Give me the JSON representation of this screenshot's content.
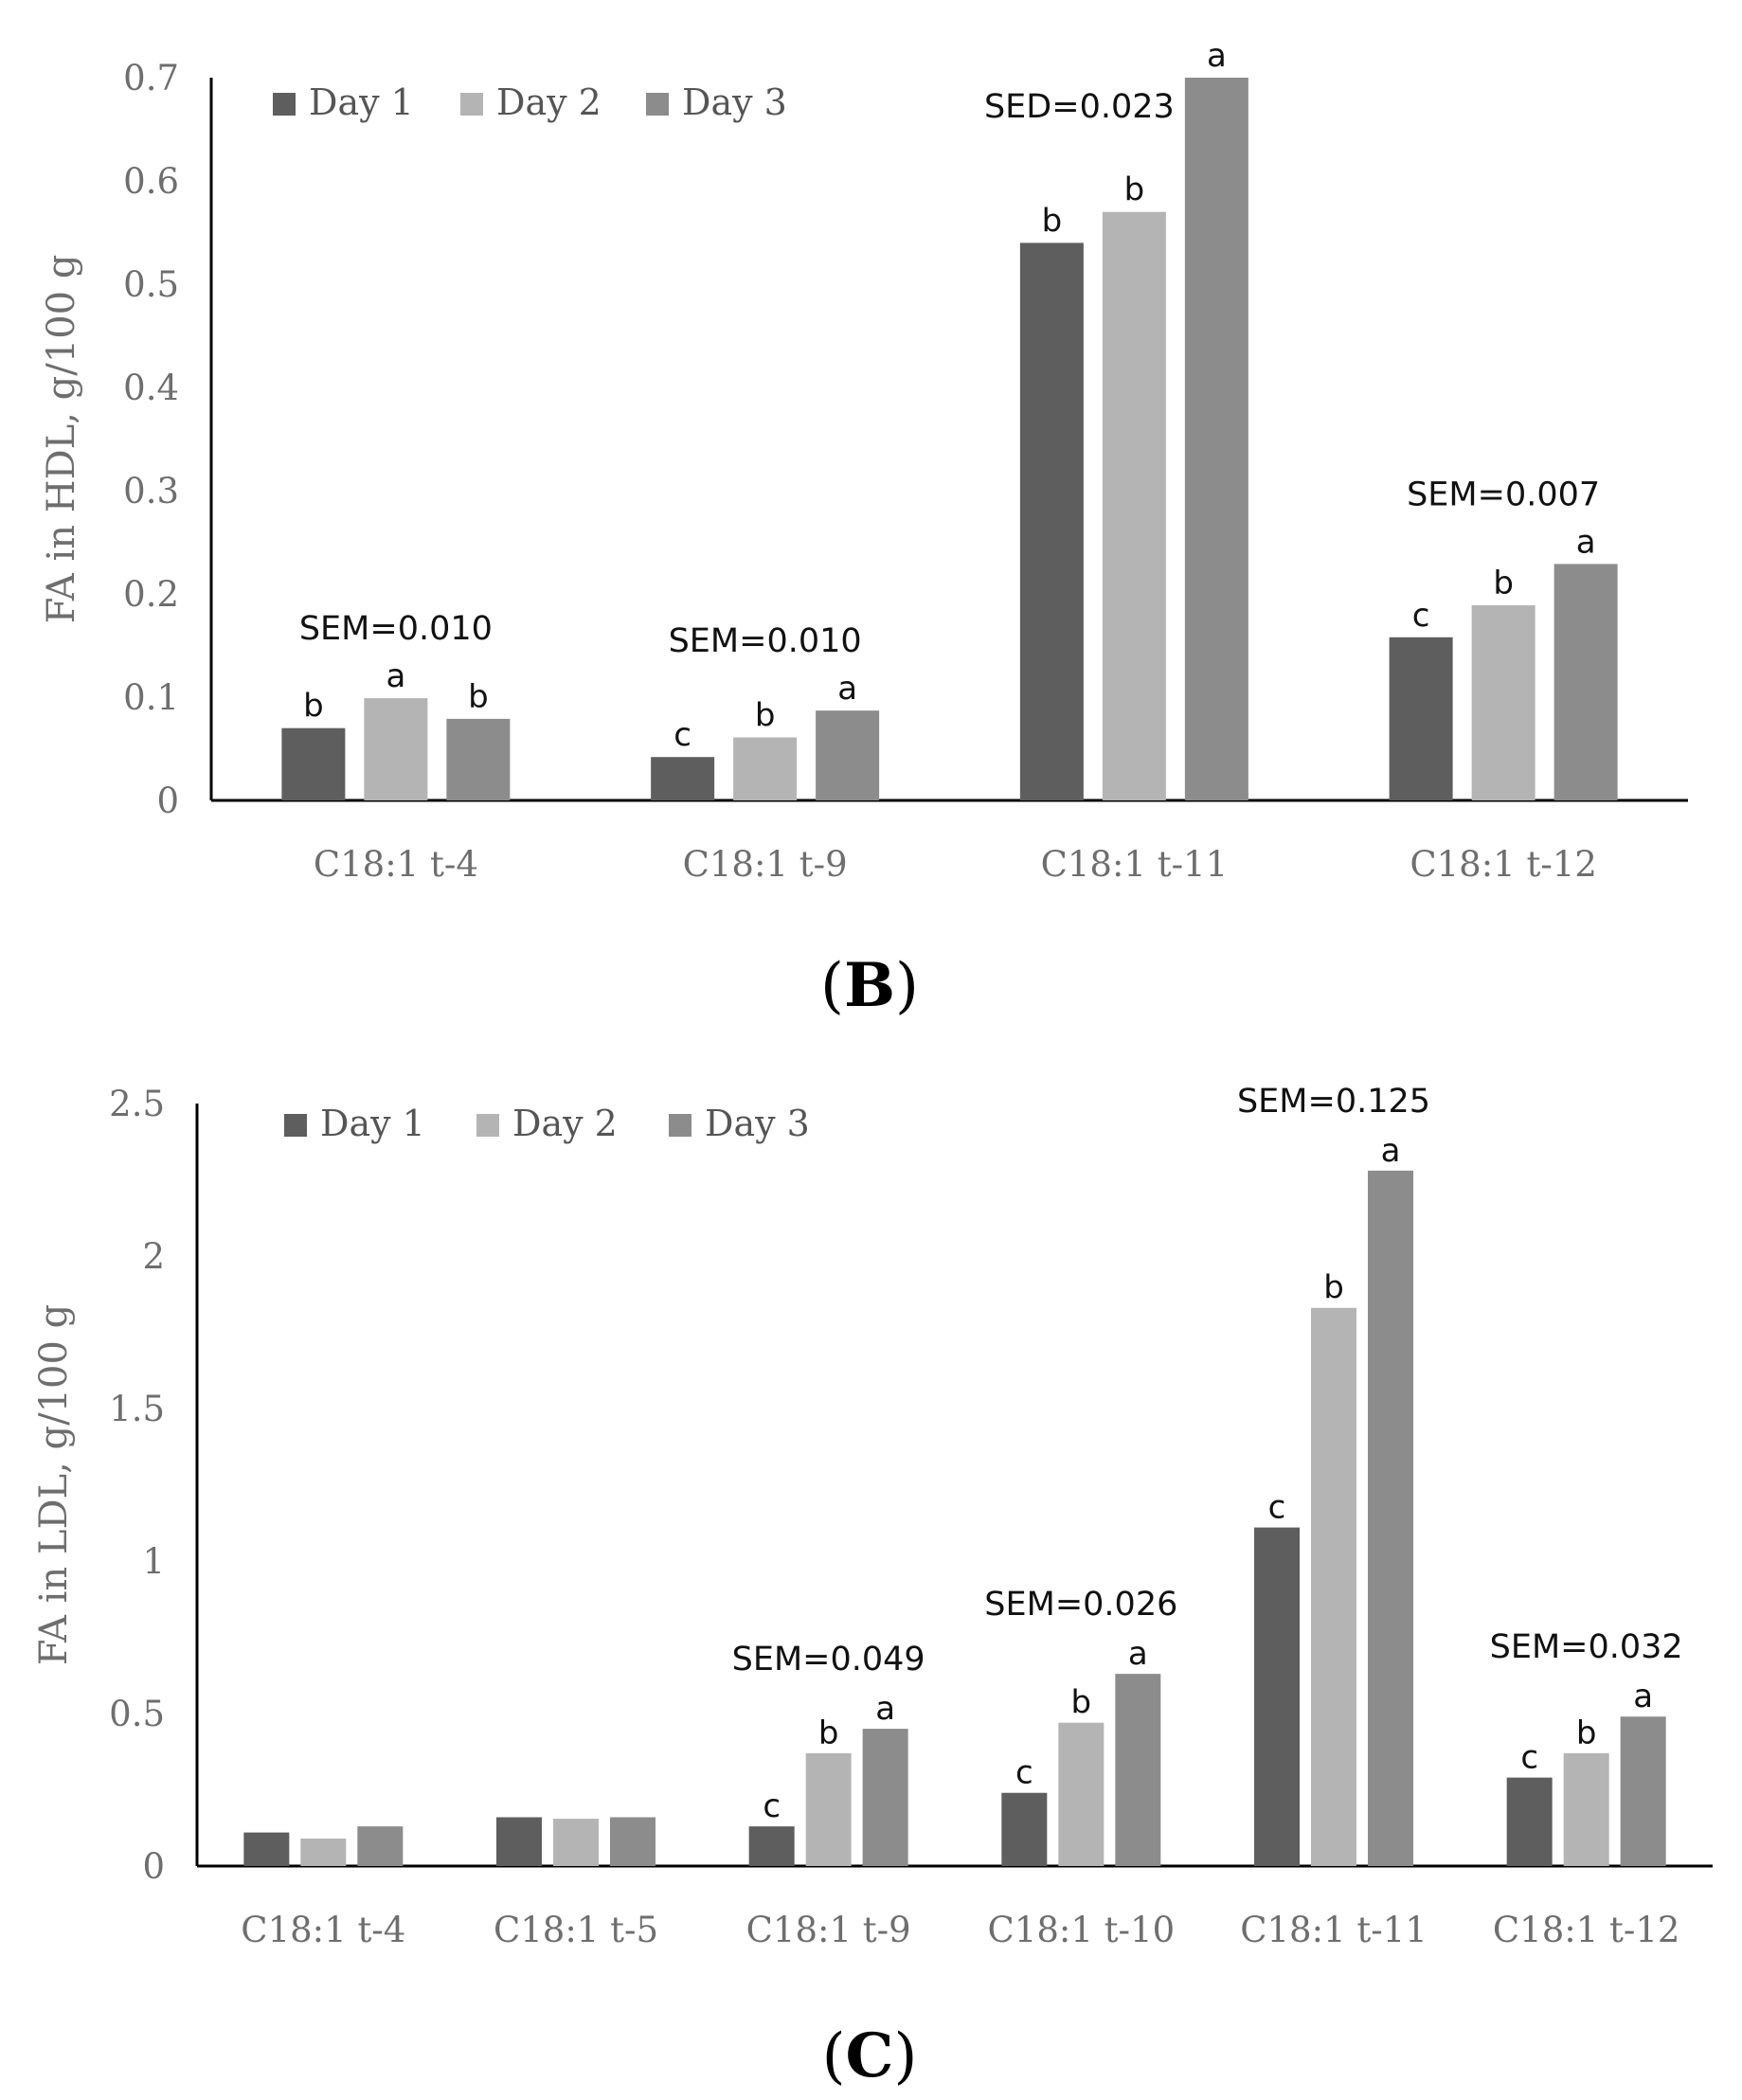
{
  "chart_data": [
    {
      "panel": "B",
      "type": "bar",
      "ylabel": "FA in HDL, g/100 g",
      "ylim": [
        0,
        0.7
      ],
      "yticks": [
        "0",
        "0.1",
        "0.2",
        "0.3",
        "0.4",
        "0.5",
        "0.6",
        "0.7"
      ],
      "categories": [
        "C18:1 t-4",
        "C18:1 t-9",
        "C18:1 t-11",
        "C18:1 t-12"
      ],
      "series": [
        {
          "name": "Day 1",
          "color": "#5e5e5e",
          "values": [
            0.07,
            0.042,
            0.54,
            0.158
          ]
        },
        {
          "name": "Day 2",
          "color": "#b4b4b4",
          "values": [
            0.099,
            0.061,
            0.57,
            0.189
          ]
        },
        {
          "name": "Day 3",
          "color": "#8c8c8c",
          "values": [
            0.079,
            0.087,
            0.7,
            0.229
          ]
        }
      ],
      "letters": [
        [
          "b",
          "a",
          "b"
        ],
        [
          "c",
          "b",
          "a"
        ],
        [
          "b",
          "b",
          "a"
        ],
        [
          "c",
          "b",
          "a"
        ]
      ],
      "stats": [
        "SEM=0.010",
        "SEM=0.010",
        "SED=0.023",
        "SEM=0.007"
      ],
      "legend": "top-left"
    },
    {
      "panel": "C",
      "type": "bar",
      "ylabel": "FA in LDL, g/100 g",
      "ylim": [
        0,
        2.5
      ],
      "yticks": [
        "0",
        "0.5",
        "1",
        "1.5",
        "2",
        "2.5"
      ],
      "categories": [
        "C18:1 t-4",
        "C18:1 t-5",
        "C18:1 t-9",
        "C18:1 t-10",
        "C18:1 t-11",
        "C18:1 t-12"
      ],
      "series": [
        {
          "name": "Day 1",
          "color": "#5e5e5e",
          "values": [
            0.11,
            0.16,
            0.13,
            0.24,
            1.11,
            0.29
          ]
        },
        {
          "name": "Day 2",
          "color": "#b4b4b4",
          "values": [
            0.09,
            0.155,
            0.37,
            0.47,
            1.83,
            0.37
          ]
        },
        {
          "name": "Day 3",
          "color": "#8c8c8c",
          "values": [
            0.13,
            0.16,
            0.45,
            0.63,
            2.28,
            0.49
          ]
        }
      ],
      "letters": [
        null,
        null,
        [
          "c",
          "b",
          "a"
        ],
        [
          "c",
          "b",
          "a"
        ],
        [
          "c",
          "b",
          "a"
        ],
        [
          "c",
          "b",
          "a"
        ]
      ],
      "stats": [
        null,
        null,
        "SEM=0.049",
        "SEM=0.026",
        "SEM=0.125",
        "SEM=0.032"
      ],
      "legend": "top-left"
    }
  ],
  "panel_labels": {
    "B": "B",
    "C": "C",
    "open": "(",
    "close": ")"
  }
}
